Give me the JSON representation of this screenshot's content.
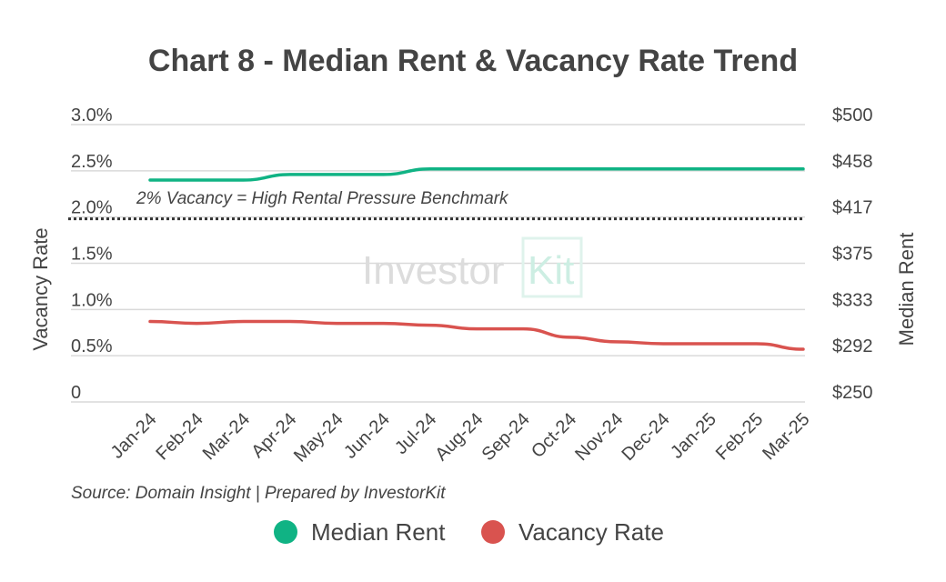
{
  "chart_data": {
    "type": "line",
    "title": "Chart 8 - Median Rent & Vacancy Rate Trend",
    "categories": [
      "Jan-24",
      "Feb-24",
      "Mar-24",
      "Apr-24",
      "May-24",
      "Jun-24",
      "Jul-24",
      "Aug-24",
      "Sep-24",
      "Oct-24",
      "Nov-24",
      "Dec-24",
      "Jan-25",
      "Feb-25",
      "Mar-25"
    ],
    "series": [
      {
        "name": "Median Rent",
        "axis": "right",
        "color": "#10b384",
        "values": [
          450,
          450,
          450,
          455,
          455,
          455,
          460,
          460,
          460,
          460,
          460,
          460,
          460,
          460,
          460
        ]
      },
      {
        "name": "Vacancy Rate",
        "axis": "left",
        "color": "#d9534f",
        "values": [
          0.87,
          0.85,
          0.87,
          0.87,
          0.85,
          0.85,
          0.83,
          0.79,
          0.79,
          0.7,
          0.65,
          0.63,
          0.63,
          0.63,
          0.57
        ]
      }
    ],
    "ylabel_left": "Vacancy Rate",
    "ylabel_right": "Median Rent",
    "ylim_left": [
      0,
      3.0
    ],
    "ylim_right": [
      250,
      500
    ],
    "yticks_left": [
      "0",
      "0.5%",
      "1.0%",
      "1.5%",
      "2.0%",
      "2.5%",
      "3.0%"
    ],
    "yticks_right": [
      "$250",
      "$292",
      "$333",
      "$375",
      "$417",
      "$458",
      "$500"
    ],
    "benchmark": {
      "value": 2.0,
      "label": "2% Vacancy = High Rental Pressure Benchmark"
    },
    "grid": true,
    "legend_position": "bottom",
    "source": "Source: Domain Insight | Prepared by InvestorKit",
    "watermark": {
      "text_a": "Investor",
      "text_b": "Kit"
    }
  }
}
